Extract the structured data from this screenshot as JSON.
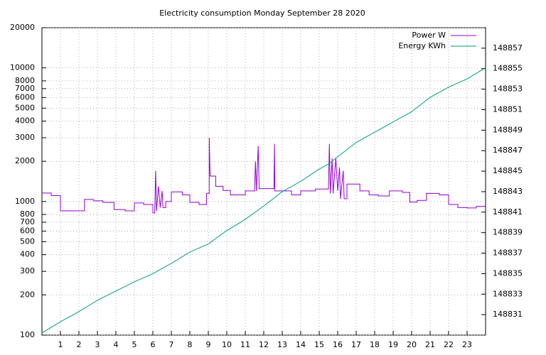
{
  "chart_data": {
    "type": "line",
    "title": "Electricity consumption Monday September 28 2020",
    "xlim": [
      0,
      24
    ],
    "xticks": [
      1,
      2,
      3,
      4,
      5,
      6,
      7,
      8,
      9,
      10,
      11,
      12,
      13,
      14,
      15,
      16,
      17,
      18,
      19,
      20,
      21,
      22,
      23
    ],
    "ylim": [
      100,
      20000
    ],
    "ylog": true,
    "yticks": [
      100,
      200,
      300,
      400,
      500,
      600,
      700,
      800,
      1000,
      2000,
      3000,
      4000,
      5000,
      6000,
      7000,
      8000,
      10000,
      20000
    ],
    "y2lim": [
      148829,
      148859
    ],
    "y2ticks": [
      148831,
      148833,
      148835,
      148837,
      148839,
      148841,
      148843,
      148845,
      148847,
      148849,
      148851,
      148853,
      148855,
      148857
    ],
    "grid": true,
    "legend": "top-right",
    "series": [
      {
        "name": "Power W",
        "color": "#9400d3",
        "x": [
          0,
          0.5,
          0.5,
          1,
          1,
          2.3,
          2.3,
          2.8,
          2.8,
          3.3,
          3.3,
          3.9,
          3.9,
          4.5,
          4.5,
          5,
          5,
          5.5,
          5.5,
          6,
          6,
          6.1,
          6.15,
          6.2,
          6.3,
          6.4,
          6.5,
          6.55,
          6.7,
          6.7,
          7,
          7,
          7.6,
          7.6,
          8,
          8,
          8.5,
          8.5,
          8.9,
          8.9,
          9.05,
          9.05,
          9.1,
          9.4,
          9.4,
          9.8,
          9.8,
          10.2,
          10.2,
          11,
          11,
          11.5,
          11.55,
          11.6,
          11.7,
          11.75,
          12.55,
          12.58,
          12.6,
          13.5,
          13.5,
          14,
          14,
          14.8,
          14.8,
          15.5,
          15.55,
          15.6,
          15.7,
          15.75,
          15.9,
          16,
          16.1,
          16.15,
          16.3,
          16.35,
          16.5,
          16.5,
          17.2,
          17.2,
          17.7,
          17.7,
          18.2,
          18.2,
          18.8,
          18.8,
          19.5,
          19.5,
          19.9,
          19.9,
          20.3,
          20.3,
          20.8,
          20.8,
          21.5,
          21.5,
          22,
          22,
          22.5,
          22.5,
          23,
          23,
          23.5,
          23.5,
          24
        ],
        "values": [
          1157,
          1157,
          1108,
          1108,
          851,
          851,
          1036,
          1036,
          1012,
          1012,
          985,
          985,
          871,
          871,
          851,
          851,
          975,
          975,
          950,
          950,
          820,
          820,
          1700,
          850,
          1300,
          900,
          1200,
          900,
          900,
          1000,
          1000,
          1180,
          1180,
          1120,
          1120,
          985,
          985,
          950,
          950,
          1150,
          1150,
          3000,
          1550,
          1550,
          1300,
          1300,
          1210,
          1210,
          1120,
          1120,
          1200,
          1200,
          2000,
          1200,
          2600,
          1250,
          1250,
          2700,
          1200,
          1200,
          1120,
          1120,
          1200,
          1200,
          1240,
          1240,
          2700,
          1150,
          2100,
          1150,
          2100,
          1200,
          1800,
          1050,
          1700,
          1050,
          1050,
          1350,
          1350,
          1200,
          1200,
          1120,
          1120,
          1100,
          1100,
          1200,
          1200,
          1170,
          1170,
          990,
          990,
          1020,
          1020,
          1150,
          1150,
          1120,
          1120,
          950,
          950,
          900,
          900,
          895,
          895,
          920,
          920
        ]
      },
      {
        "name": "Energy KWh",
        "color": "#009e73",
        "axis": "y2",
        "x": [
          0,
          1,
          2,
          3,
          4,
          5,
          6,
          7,
          8,
          9,
          10,
          11,
          12,
          13,
          14,
          15,
          15.5,
          16,
          17,
          18,
          19,
          20,
          21,
          22,
          23,
          24
        ],
        "values": [
          148829.2,
          148830.3,
          148831.3,
          148832.4,
          148833.3,
          148834.2,
          148835,
          148836,
          148837.1,
          148837.9,
          148839.2,
          148840.3,
          148841.6,
          148843,
          148844,
          148845.2,
          148845.7,
          148846.4,
          148847.8,
          148848.8,
          148849.8,
          148850.8,
          148852.2,
          148853.2,
          148854,
          148855.1
        ]
      }
    ]
  }
}
